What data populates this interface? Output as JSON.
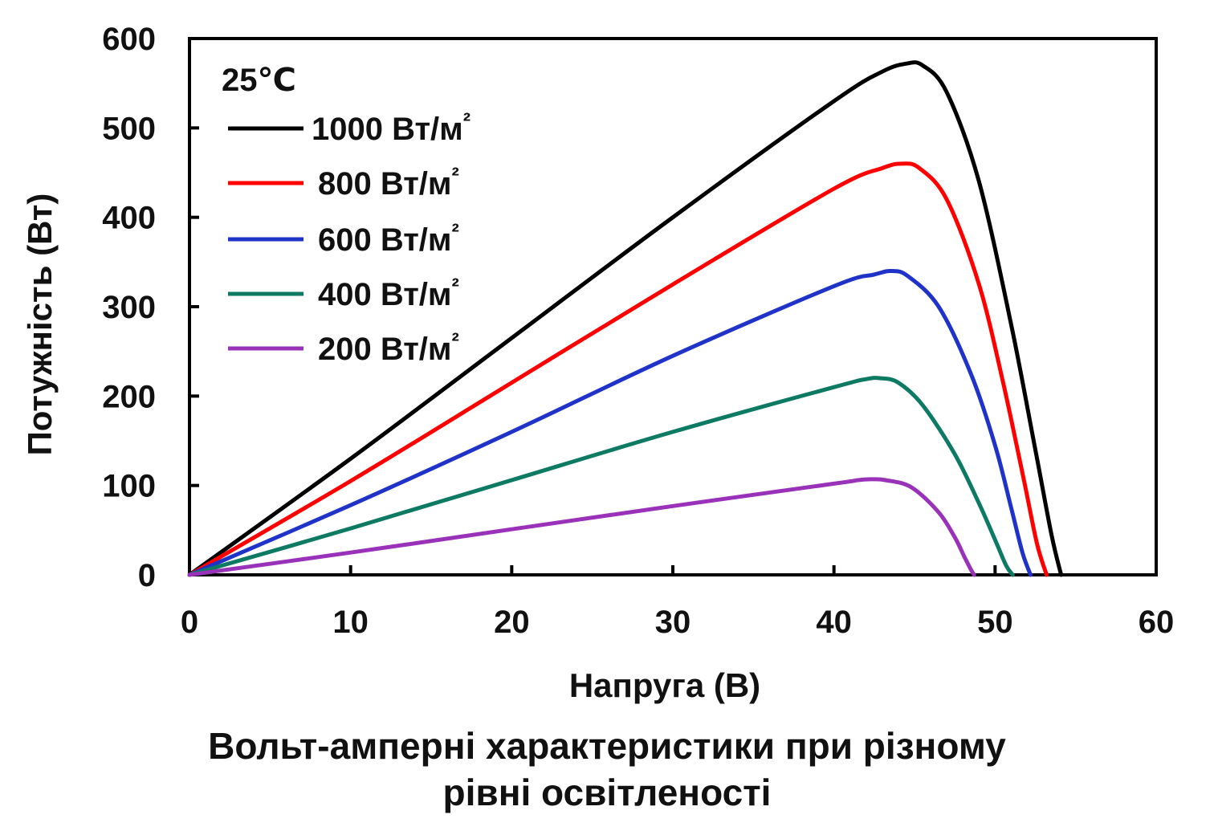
{
  "chart_data": {
    "type": "line",
    "title": "Вольт-амперні характеристики при різному рівні освітленості",
    "title_lines": [
      "Вольт-амперні характеристики при різному",
      "рівні освітленості"
    ],
    "xlabel": "Напруга  (В)",
    "ylabel": "Потужність (Вт)",
    "xlim": [
      0,
      60
    ],
    "ylim": [
      0,
      600
    ],
    "xticks": [
      "0",
      "10",
      "20",
      "30",
      "40",
      "50",
      "60"
    ],
    "yticks": [
      "0",
      "100",
      "200",
      "300",
      "400",
      "500",
      "600"
    ],
    "grid": false,
    "legend_placement": "top-left",
    "annotation": "25℃",
    "unit_suffix": "²",
    "series": [
      {
        "name": "1000 Вт/м",
        "color": "#000000",
        "x": [
          0,
          10,
          20,
          30,
          40,
          43,
          44.5,
          45.5,
          47,
          49,
          51,
          52.5,
          53.5,
          54.1
        ],
        "y": [
          0,
          130,
          265,
          400,
          530,
          563,
          572,
          570,
          540,
          440,
          280,
          140,
          45,
          0
        ]
      },
      {
        "name": "800 Вт/м",
        "color": "#ff0000",
        "x": [
          0,
          10,
          20,
          30,
          40,
          43,
          44.2,
          45.3,
          47,
          49,
          50.5,
          51.8,
          52.6,
          53.2
        ],
        "y": [
          0,
          105,
          215,
          325,
          432,
          455,
          460,
          455,
          420,
          325,
          215,
          105,
          35,
          0
        ]
      },
      {
        "name": "600 Вт/м",
        "color": "#1f33c9",
        "x": [
          0,
          10,
          20,
          30,
          40,
          42.5,
          43.6,
          44.6,
          46.5,
          48.5,
          50,
          51,
          51.7,
          52.2
        ],
        "y": [
          0,
          78,
          160,
          245,
          323,
          336,
          340,
          334,
          300,
          225,
          145,
          75,
          25,
          0
        ]
      },
      {
        "name": "400 Вт/м",
        "color": "#0d7a63",
        "x": [
          0,
          10,
          20,
          30,
          40,
          42,
          42.9,
          44,
          45.5,
          47.5,
          49,
          50.1,
          50.7,
          51.1
        ],
        "y": [
          0,
          52,
          106,
          160,
          210,
          219,
          220,
          215,
          190,
          135,
          80,
          35,
          10,
          0
        ]
      },
      {
        "name": "200 Вт/м",
        "color": "#9932b8",
        "x": [
          0,
          10,
          20,
          30,
          40,
          41.5,
          42.3,
          43.2,
          44.8,
          46.5,
          47.5,
          48.1,
          48.5,
          48.7
        ],
        "y": [
          0,
          25,
          51,
          77,
          102,
          106,
          107,
          106,
          98,
          70,
          42,
          20,
          6,
          0
        ]
      }
    ]
  }
}
